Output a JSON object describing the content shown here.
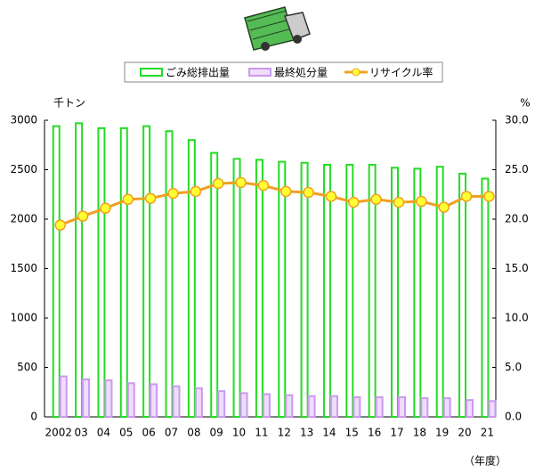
{
  "chart_data": {
    "type": "bar",
    "y_unit": "千トン",
    "y2_unit": "%",
    "x_unit": "（年度）",
    "categories": [
      "2002",
      "03",
      "04",
      "05",
      "06",
      "07",
      "08",
      "09",
      "10",
      "11",
      "12",
      "13",
      "14",
      "15",
      "16",
      "17",
      "18",
      "19",
      "20",
      "21"
    ],
    "series": [
      {
        "name": "ごみ総排出量",
        "type": "bar",
        "color": "#22dd22",
        "values": [
          2940,
          2970,
          2920,
          2920,
          2940,
          2890,
          2800,
          2670,
          2610,
          2600,
          2580,
          2570,
          2550,
          2550,
          2550,
          2520,
          2510,
          2530,
          2460,
          2410
        ]
      },
      {
        "name": "最終処分量",
        "type": "bar",
        "color": "#cc99ee",
        "values": [
          410,
          380,
          370,
          340,
          330,
          310,
          290,
          260,
          240,
          230,
          220,
          210,
          210,
          200,
          200,
          200,
          190,
          190,
          170,
          160
        ]
      },
      {
        "name": "リサイクル率",
        "type": "line",
        "axis": "y2",
        "color": "#f0a020",
        "marker_color": "#ffff33",
        "values": [
          19.4,
          20.3,
          21.1,
          22.0,
          22.1,
          22.6,
          22.8,
          23.6,
          23.7,
          23.4,
          22.8,
          22.7,
          22.3,
          21.7,
          22.0,
          21.7,
          21.8,
          21.2,
          22.3,
          22.3
        ]
      }
    ],
    "ylim": [
      0,
      3000
    ],
    "yticks": [
      0,
      500,
      1000,
      1500,
      2000,
      2500,
      3000
    ],
    "y2lim": [
      0,
      30
    ],
    "y2ticks": [
      {
        "value": 0,
        "label": "0.0"
      },
      {
        "value": 5,
        "label": "5.0"
      },
      {
        "value": 10,
        "label": "10.0"
      },
      {
        "value": 15,
        "label": "15.0"
      },
      {
        "value": 20,
        "label": "20.0"
      },
      {
        "value": 25,
        "label": "25.0"
      },
      {
        "value": 30,
        "label": "30.0"
      }
    ],
    "grid": false
  }
}
